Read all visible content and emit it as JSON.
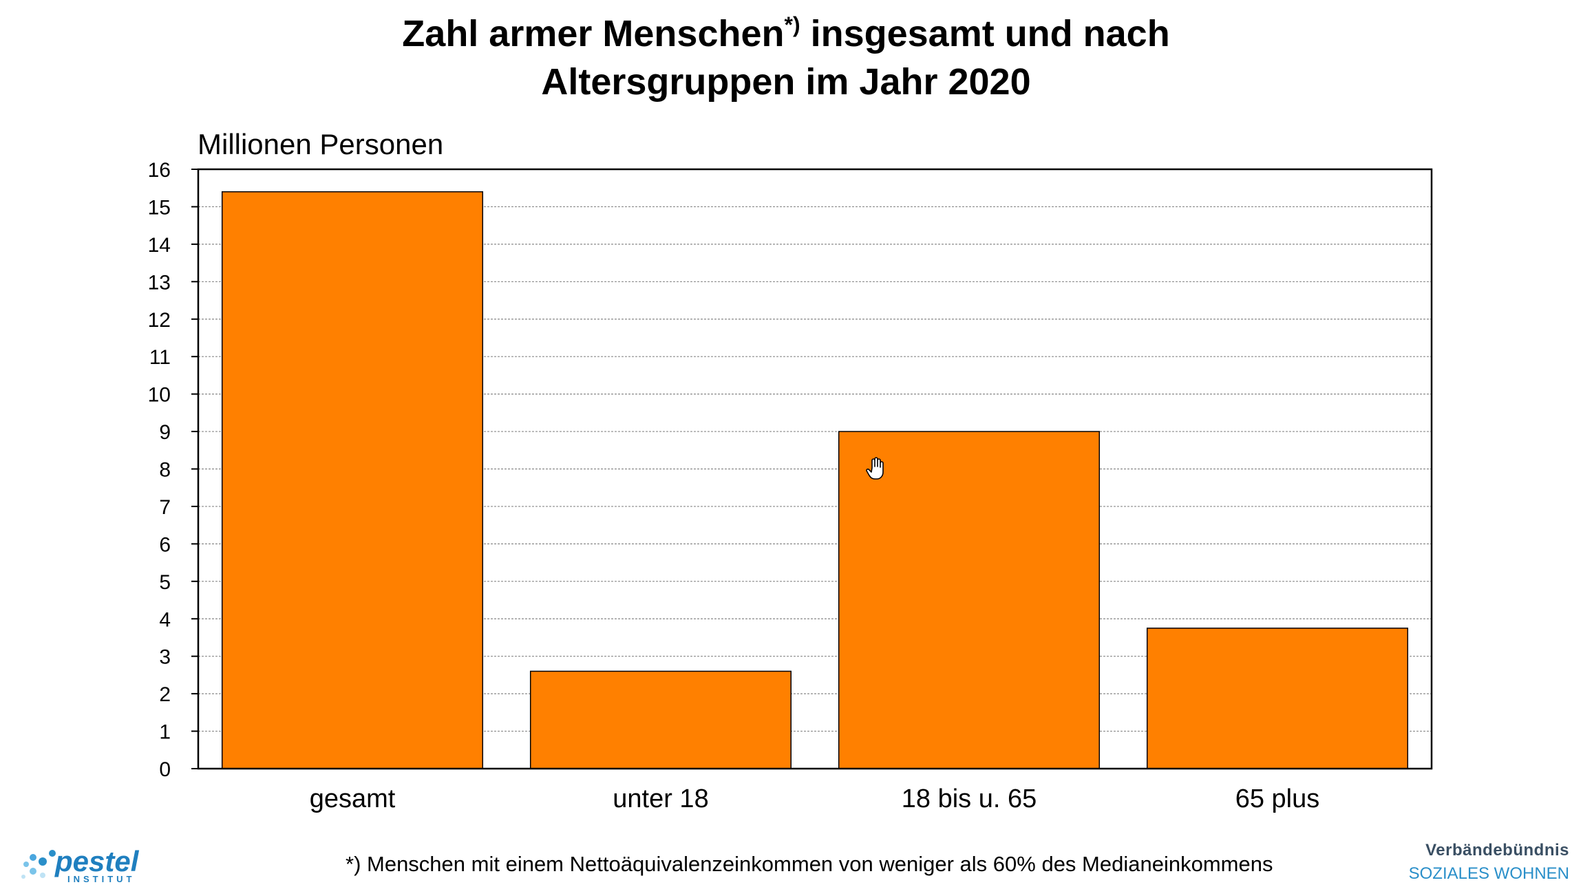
{
  "chart_data": {
    "type": "bar",
    "title_main": "Zahl armer Menschen",
    "title_sup": "*)",
    "title_rest": " insgesamt und nach",
    "title_line2": "Altersgruppen im Jahr 2020",
    "ylabel": "Millionen Personen",
    "xlabel": "",
    "categories": [
      "gesamt",
      "unter 18",
      "18 bis u. 65",
      "65 plus"
    ],
    "values": [
      15.4,
      2.6,
      9.0,
      3.75
    ],
    "ylim": [
      0,
      16
    ],
    "yticks": [
      0,
      1,
      2,
      3,
      4,
      5,
      6,
      7,
      8,
      9,
      10,
      11,
      12,
      13,
      14,
      15,
      16
    ],
    "grid": true,
    "legend": "none",
    "bar_color": "#ff8000",
    "footnote": "*) Menschen mit einem Nettoäquivalenzeinkommen von weniger als 60% des Medianeinkommens"
  },
  "logos": {
    "left_text": "pestel",
    "left_sub": "INSTITUT",
    "right_line1": "Verbändebündnis",
    "right_line2": "SOZIALES WOHNEN"
  },
  "icons": {
    "cursor": "hand-cursor-icon"
  }
}
